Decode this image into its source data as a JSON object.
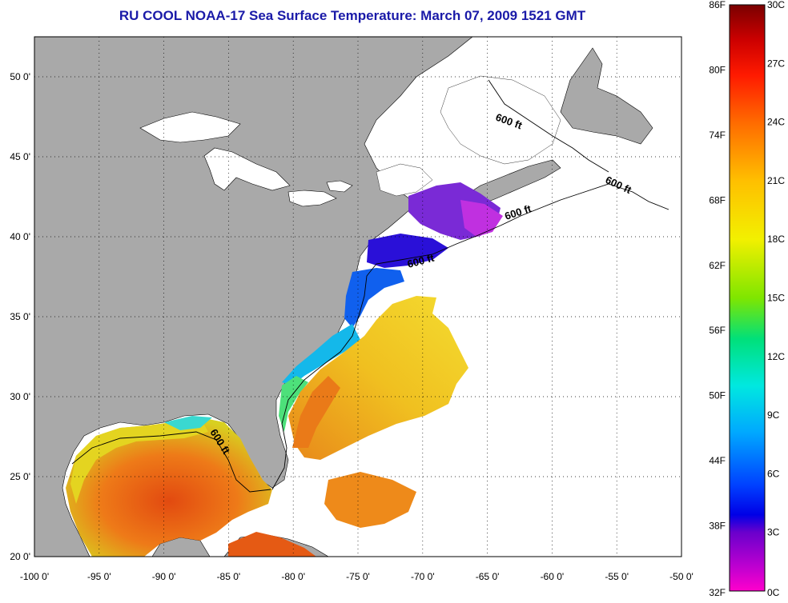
{
  "title": "RU COOL  NOAA-17  Sea Surface Temperature:  March 07, 2009 1521 GMT",
  "map": {
    "lon_labels": [
      "-100 0'",
      "-95 0'",
      "-90 0'",
      "-85 0'",
      "-80 0'",
      "-75 0'",
      "-70 0'",
      "-65 0'",
      "-60 0'",
      "-55 0'",
      "-50 0'"
    ],
    "lat_labels": [
      "50 0'",
      "45 0'",
      "40 0'",
      "35 0'",
      "30 0'",
      "25 0'",
      "20 0'"
    ],
    "lon_range": [
      -100,
      -50
    ],
    "lat_range": [
      20,
      52.5
    ],
    "contour_label": "600 ft",
    "land_color": "#a9a9a9",
    "cloud_color": "#ffffff"
  },
  "colorbar": {
    "fahrenheit": [
      "86F",
      "80F",
      "74F",
      "68F",
      "62F",
      "56F",
      "50F",
      "44F",
      "38F",
      "32F"
    ],
    "celsius": [
      "30C",
      "27C",
      "24C",
      "21C",
      "18C",
      "15C",
      "12C",
      "9C",
      "6C",
      "3C",
      "0C"
    ],
    "range_c": [
      0,
      30
    ]
  }
}
